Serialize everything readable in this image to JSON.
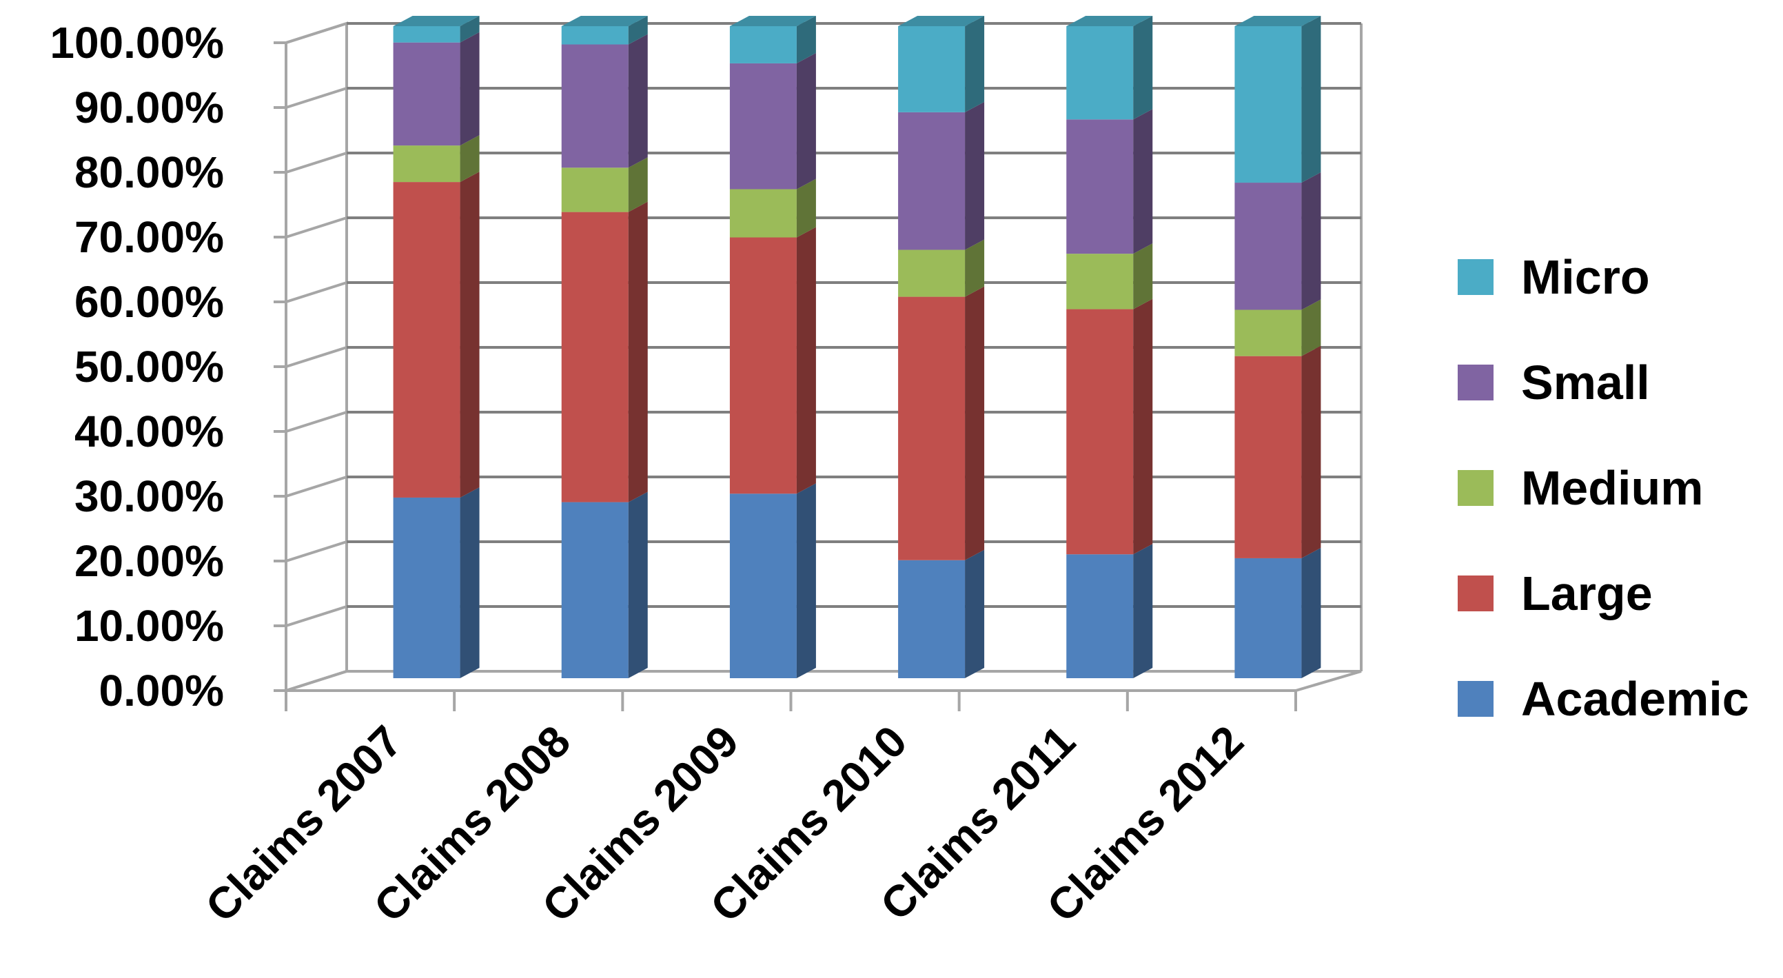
{
  "chart_data": {
    "type": "bar",
    "stacked": true,
    "normalized": true,
    "three_d": true,
    "categories": [
      "Claims 2007",
      "Claims 2008",
      "Claims 2009",
      "Claims 2010",
      "Claims 2011",
      "Claims 2012"
    ],
    "series": [
      {
        "name": "Academic",
        "color": "#4F81BD",
        "values": [
          27.7,
          27.0,
          28.3,
          18.1,
          19.0,
          18.4
        ]
      },
      {
        "name": "Large",
        "color": "#C0504D",
        "values": [
          48.4,
          44.5,
          39.3,
          40.4,
          37.6,
          31.0
        ]
      },
      {
        "name": "Medium",
        "color": "#9BBB59",
        "values": [
          5.6,
          6.8,
          7.4,
          7.2,
          8.5,
          7.1
        ]
      },
      {
        "name": "Small",
        "color": "#8064A2",
        "values": [
          15.8,
          18.9,
          19.3,
          21.1,
          20.6,
          19.5
        ]
      },
      {
        "name": "Micro",
        "color": "#4BACC6",
        "values": [
          2.5,
          2.8,
          5.7,
          13.2,
          14.3,
          24.0
        ]
      }
    ],
    "y_ticks": [
      "0.00%",
      "10.00%",
      "20.00%",
      "30.00%",
      "40.00%",
      "50.00%",
      "60.00%",
      "70.00%",
      "80.00%",
      "90.00%",
      "100.00%"
    ],
    "ylim": [
      0,
      100
    ],
    "title": "",
    "xlabel": "",
    "ylabel": "",
    "grid": true,
    "legend_position": "right",
    "legend_order": [
      "Micro",
      "Small",
      "Medium",
      "Large",
      "Academic"
    ]
  }
}
